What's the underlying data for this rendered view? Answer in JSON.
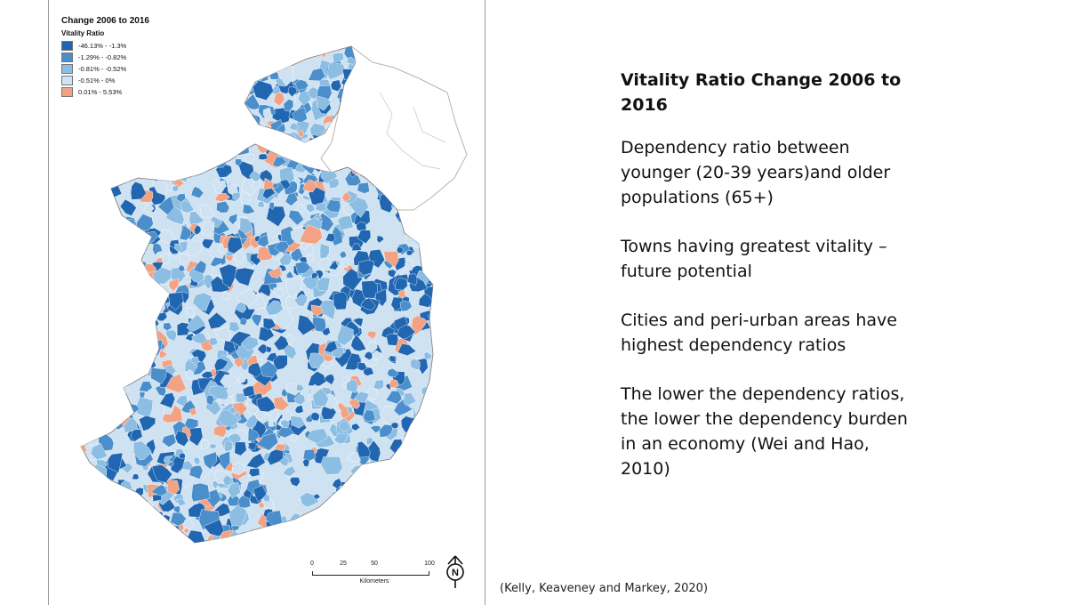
{
  "map": {
    "title": "Change 2006 to 2016",
    "legend_title": "Vitality Ratio",
    "legend": [
      {
        "label": "-46.13% - -1.3%",
        "color": "#2166b0"
      },
      {
        "label": "-1.29% - -0.82%",
        "color": "#4a8fcb"
      },
      {
        "label": "-0.81% - -0.52%",
        "color": "#8cbde2"
      },
      {
        "label": "-0.51% - 0%",
        "color": "#cfe2f2"
      },
      {
        "label": "0.01% - 5.53%",
        "color": "#f3a383"
      }
    ],
    "scale_ticks": [
      "0",
      "25",
      "50",
      "100"
    ],
    "scale_unit": "Kilometers",
    "north_label": "N"
  },
  "slide": {
    "title": "Vitality Ratio Change 2006 to 2016",
    "paragraphs": [
      "Dependency ratio between younger (20-39 years)and older populations (65+)",
      "Towns having greatest vitality – future potential",
      "Cities and peri-urban areas have highest dependency ratios",
      "The lower the dependency ratios, the lower the dependency burden in an economy (Wei and Hao, 2010)"
    ],
    "citation": "(Kelly, Keaveney and Markey, 2020)"
  }
}
